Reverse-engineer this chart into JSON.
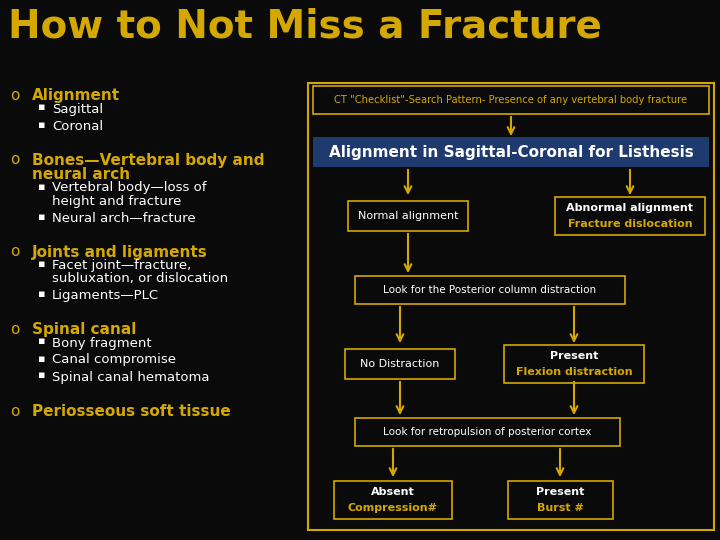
{
  "background_color": "#0a0a0a",
  "title": "How to Not Miss a Fracture",
  "title_color": "#d4a800",
  "title_fontsize": 28,
  "bullet_color": "#d4a800",
  "sub_bullet_color": "#ffffff",
  "bullets": [
    {
      "main": "Alignment",
      "subs": [
        "Sagittal",
        "Coronal"
      ]
    },
    {
      "main": "Bones—Vertebral body and\nneural arch",
      "subs": [
        "Vertebral body—loss of\nheight and fracture",
        "Neural arch—fracture"
      ]
    },
    {
      "main": "Joints and ligaments",
      "subs": [
        "Facet joint—fracture,\nsubluxation, or dislocation",
        "Ligaments—PLC"
      ]
    },
    {
      "main": "Spinal canal",
      "subs": [
        "Bony fragment",
        "Canal compromise",
        "Spinal canal hematoma"
      ]
    },
    {
      "main": "Periosseous soft tissue",
      "subs": []
    }
  ],
  "flowchart": {
    "border_color": "#d4a800",
    "arrow_color": "#d4a800",
    "box_bg": "#0a0a0a",
    "box_border": "#d4a800",
    "header_text": "CT \"Checklist\"-Search Pattern- Presence of any vertebral body fracture",
    "blue_box_text": "Alignment in Sagittal-Coronal for Listhesis",
    "blue_box_bg": "#1e3a6e",
    "blue_box_text_color": "#ffffff"
  }
}
